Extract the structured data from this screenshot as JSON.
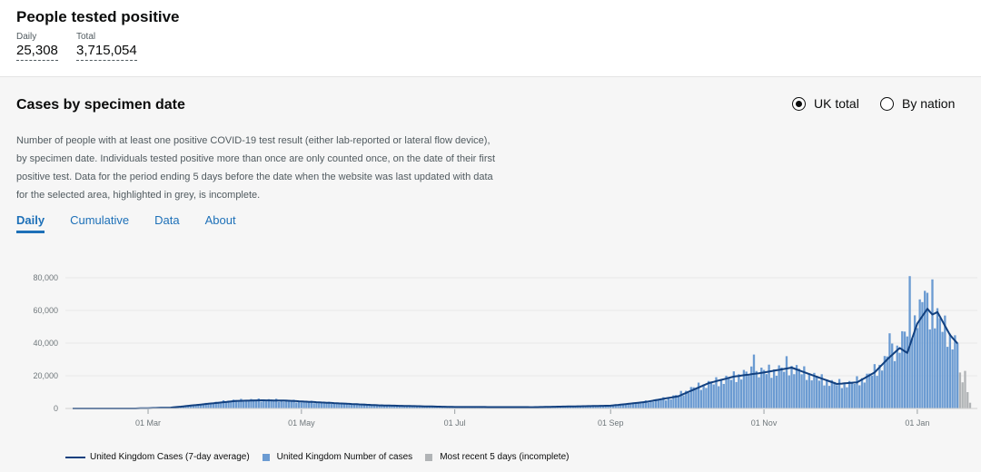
{
  "header": {
    "title": "People tested positive",
    "daily_label": "Daily",
    "daily_value": "25,308",
    "total_label": "Total",
    "total_value": "3,715,054"
  },
  "card": {
    "title": "Cases by specimen date",
    "radio_uk": "UK total",
    "radio_nation": "By nation",
    "description": "Number of people with at least one positive COVID-19 test result (either lab-reported or lateral flow device), by specimen date. Individuals tested positive more than once are only counted once, on the date of their first positive test. Data for the period ending 5 days before the date when the website was last updated with data for the selected area, highlighted in grey, is incomplete.",
    "tabs": [
      "Daily",
      "Cumulative",
      "Data",
      "About"
    ],
    "active_tab": "Daily"
  },
  "colors": {
    "bar": "#6b9bd2",
    "line": "#12407f",
    "incomplete": "#b1b4b6",
    "link": "#1d70b8"
  },
  "legend": {
    "line": "United Kingdom Cases (7-day average)",
    "bars": "United Kingdom Number of cases",
    "incomplete": "Most recent 5 days (incomplete)"
  },
  "chart_data": {
    "type": "bar",
    "ylim": [
      0,
      85000
    ],
    "y_ticks": [
      0,
      20000,
      40000,
      60000,
      80000
    ],
    "y_tick_labels": [
      "0",
      "20,000",
      "40,000",
      "60,000",
      "80,000"
    ],
    "x_range": [
      "2020-01-31",
      "2021-01-22"
    ],
    "x_ticks": [
      "2020-03-01",
      "2020-05-01",
      "2020-07-01",
      "2020-09-01",
      "2020-11-01",
      "2021-01-01"
    ],
    "x_tick_labels": [
      "01 Mar",
      "01 May",
      "01 Jul",
      "01 Sep",
      "01 Nov",
      "01 Jan"
    ],
    "grid": true,
    "legend_position": "bottom",
    "series": [
      {
        "name": "United Kingdom Number of cases",
        "type": "bar"
      },
      {
        "name": "United Kingdom Cases (7-day average)",
        "type": "line"
      },
      {
        "name": "Most recent 5 days (incomplete)",
        "type": "bar"
      }
    ],
    "daily_anchors": [
      [
        "2020-01-31",
        0
      ],
      [
        "2020-02-25",
        20
      ],
      [
        "2020-03-10",
        600
      ],
      [
        "2020-03-22",
        2500
      ],
      [
        "2020-04-03",
        4800
      ],
      [
        "2020-04-12",
        5200
      ],
      [
        "2020-04-22",
        5000
      ],
      [
        "2020-05-05",
        4000
      ],
      [
        "2020-05-20",
        2800
      ],
      [
        "2020-06-10",
        1600
      ],
      [
        "2020-07-05",
        900
      ],
      [
        "2020-08-01",
        900
      ],
      [
        "2020-08-20",
        1200
      ],
      [
        "2020-09-01",
        1600
      ],
      [
        "2020-09-12",
        3500
      ],
      [
        "2020-09-25",
        6500
      ],
      [
        "2020-10-05",
        13000
      ],
      [
        "2020-10-15",
        17000
      ],
      [
        "2020-10-25",
        21500
      ],
      [
        "2020-11-05",
        23000
      ],
      [
        "2020-11-12",
        25000
      ],
      [
        "2020-11-20",
        20000
      ],
      [
        "2020-11-28",
        15500
      ],
      [
        "2020-12-05",
        15000
      ],
      [
        "2020-12-12",
        19000
      ],
      [
        "2020-12-18",
        27000
      ],
      [
        "2020-12-24",
        37000
      ],
      [
        "2020-12-29",
        50000
      ],
      [
        "2021-01-03",
        62000
      ],
      [
        "2021-01-08",
        57000
      ],
      [
        "2021-01-13",
        46000
      ],
      [
        "2021-01-17",
        38000
      ],
      [
        "2021-01-22",
        28000
      ]
    ],
    "avg_anchors": [
      [
        "2020-01-31",
        0
      ],
      [
        "2020-02-25",
        20
      ],
      [
        "2020-03-10",
        500
      ],
      [
        "2020-03-22",
        2400
      ],
      [
        "2020-04-05",
        4600
      ],
      [
        "2020-04-15",
        5000
      ],
      [
        "2020-04-25",
        4800
      ],
      [
        "2020-05-10",
        3600
      ],
      [
        "2020-06-01",
        1900
      ],
      [
        "2020-07-01",
        900
      ],
      [
        "2020-08-01",
        800
      ],
      [
        "2020-09-01",
        1700
      ],
      [
        "2020-09-15",
        4000
      ],
      [
        "2020-09-28",
        7500
      ],
      [
        "2020-10-10",
        15500
      ],
      [
        "2020-10-20",
        19500
      ],
      [
        "2020-11-01",
        22000
      ],
      [
        "2020-11-12",
        25000
      ],
      [
        "2020-11-20",
        20500
      ],
      [
        "2020-11-30",
        15000
      ],
      [
        "2020-12-08",
        16000
      ],
      [
        "2020-12-15",
        22000
      ],
      [
        "2020-12-20",
        30000
      ],
      [
        "2020-12-25",
        37000
      ],
      [
        "2020-12-28",
        34000
      ],
      [
        "2021-01-01",
        52000
      ],
      [
        "2021-01-05",
        61000
      ],
      [
        "2021-01-07",
        57500
      ],
      [
        "2021-01-09",
        59000
      ],
      [
        "2021-01-14",
        45000
      ],
      [
        "2021-01-18",
        38000
      ],
      [
        "2021-01-22",
        33000
      ]
    ],
    "peaks": [
      [
        "2020-10-28",
        33000
      ],
      [
        "2020-11-10",
        32000
      ],
      [
        "2020-12-21",
        46000
      ],
      [
        "2020-12-29",
        81000
      ],
      [
        "2021-01-04",
        72000
      ],
      [
        "2021-01-07",
        79000
      ]
    ],
    "incomplete_values": [
      22000,
      16000,
      23000,
      10000,
      3500
    ]
  }
}
